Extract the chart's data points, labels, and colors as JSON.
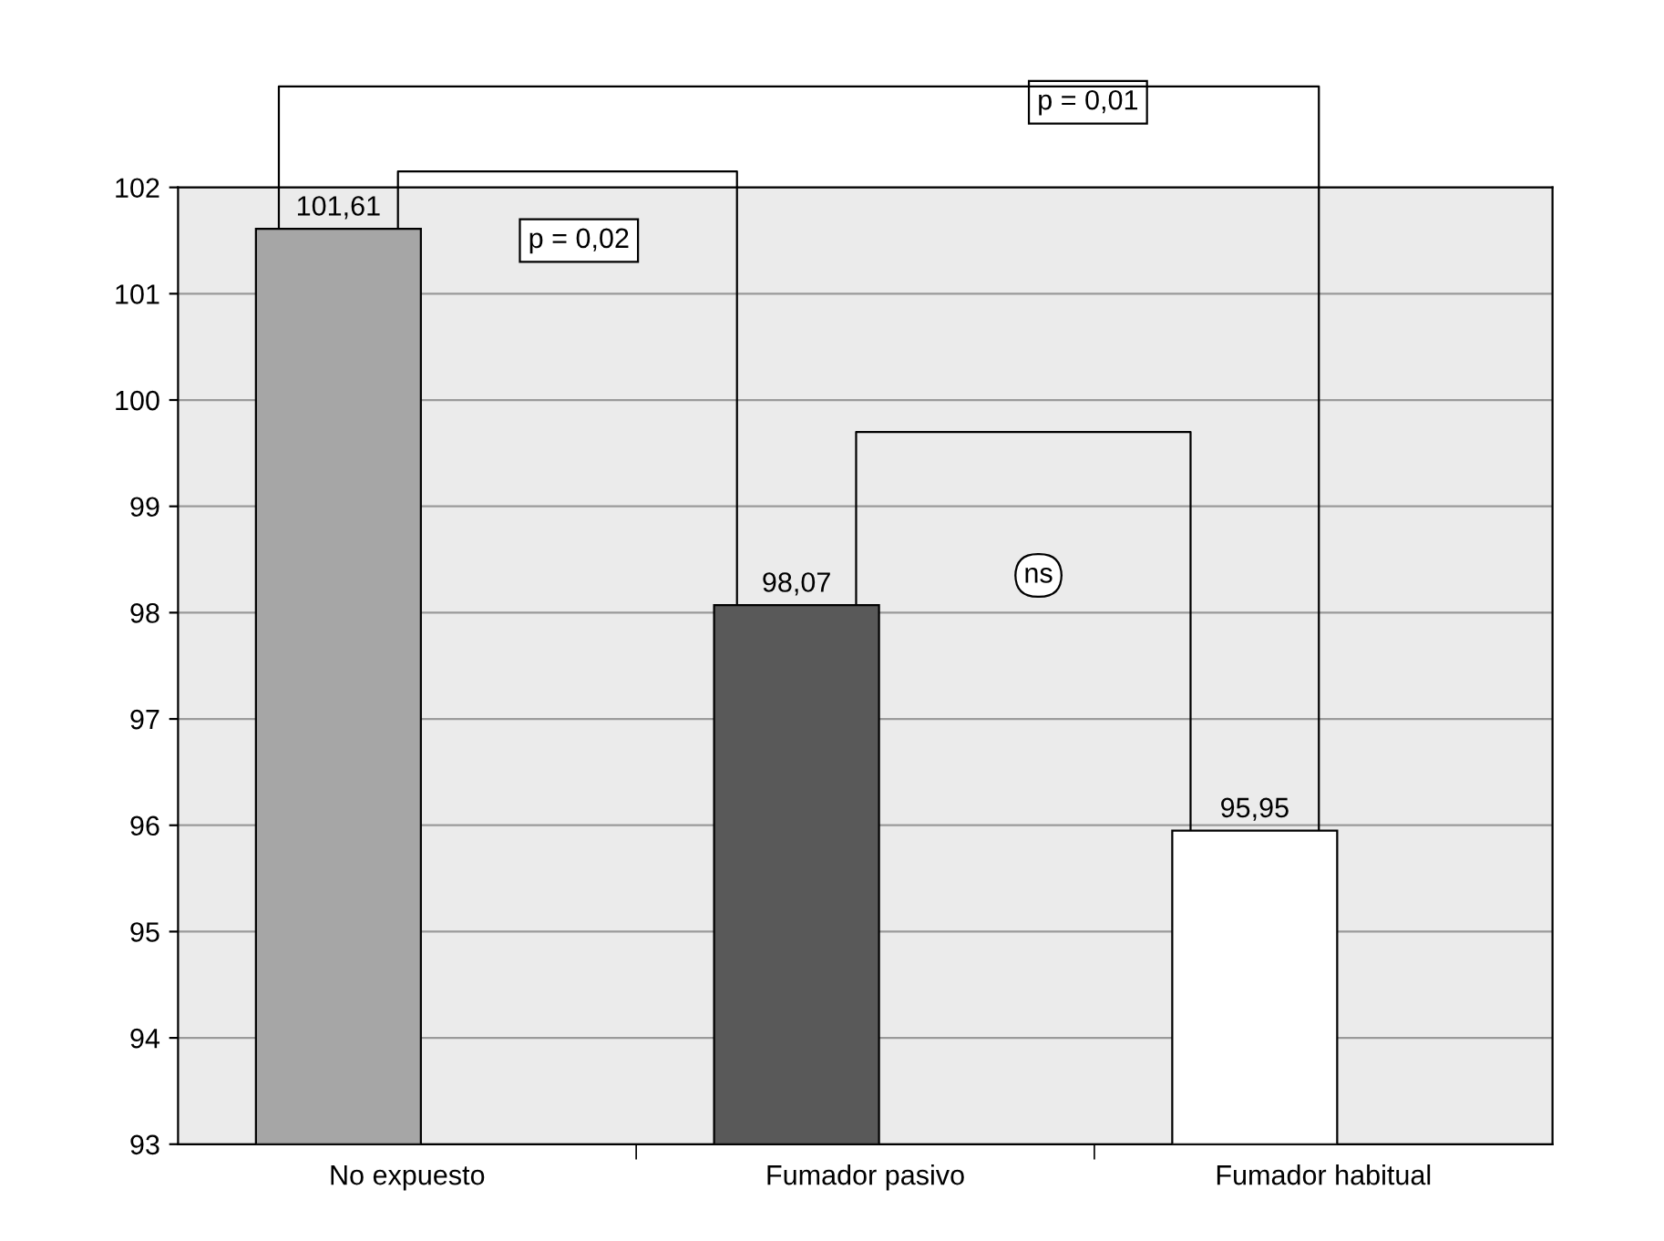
{
  "chart_data": {
    "type": "bar",
    "categories": [
      "No expuesto",
      "Fumador pasivo",
      "Fumador habitual"
    ],
    "values": [
      101.61,
      98.07,
      95.95
    ],
    "colors": [
      "#a6a6a6",
      "#595959",
      "#ffffff"
    ],
    "value_labels": [
      "101,61",
      "98,07",
      "95,95"
    ],
    "ylim": [
      93,
      102
    ],
    "yticks": [
      93,
      94,
      95,
      96,
      97,
      98,
      99,
      100,
      101,
      102
    ],
    "grid": "y",
    "annotations": [
      "p = 0,01",
      "p = 0,02",
      "ns"
    ]
  }
}
